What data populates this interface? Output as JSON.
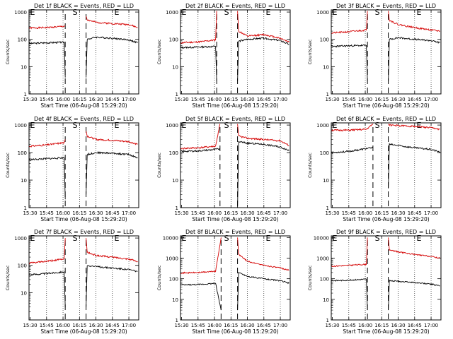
{
  "figure": {
    "colors": {
      "events": "#000000",
      "lld": "#d40000",
      "markers": "#000000"
    }
  },
  "chart_data": [
    {
      "type": "line",
      "title": "Det 1f BLACK = Events, RED = LLD",
      "ylabel": "Counts/sec",
      "xlabel": "Start Time (06-Aug-08 15:29:20)",
      "x_tick_labels": [
        "15:30",
        "15:45",
        "16:00",
        "16:15",
        "16:30",
        "16:45",
        "17:00"
      ],
      "y_tick_labels": [
        "1",
        "10",
        "100",
        "1000"
      ],
      "xlim": [
        "15:29",
        "17:09"
      ],
      "ylim": [
        1,
        1200
      ],
      "y_scale": "log",
      "grid": "vertical dotted",
      "markers": [
        {
          "label": "S",
          "time": "16:11"
        },
        {
          "label": "E",
          "time": "16:49"
        }
      ],
      "gap": [
        "16:02",
        "16:21"
      ],
      "series": [
        {
          "color": "red",
          "x": [
            "15:29",
            "15:45",
            "16:01",
            "16:02"
          ],
          "y": [
            260,
            270,
            300,
            320
          ]
        },
        {
          "color": "red",
          "x": [
            "16:21",
            "16:22",
            "16:30",
            "16:45",
            "17:00",
            "17:08"
          ],
          "y": [
            700,
            520,
            420,
            380,
            350,
            270
          ]
        },
        {
          "color": "black",
          "x": [
            "15:29",
            "15:45",
            "16:01",
            "16:02"
          ],
          "y": [
            70,
            75,
            78,
            4
          ]
        },
        {
          "color": "black",
          "x": [
            "16:21",
            "16:22",
            "16:30",
            "16:45",
            "17:00",
            "17:08"
          ],
          "y": [
            4,
            100,
            120,
            110,
            95,
            75
          ]
        }
      ]
    },
    {
      "type": "line",
      "title": "Det 2f BLACK = Events, RED = LLD",
      "ylabel": "Counts/sec",
      "xlabel": "Start Time (06-Aug-08 15:29:20)",
      "x_tick_labels": [
        "15:30",
        "15:45",
        "16:00",
        "16:15",
        "16:30",
        "16:45",
        "17:00"
      ],
      "y_tick_labels": [
        "1",
        "10",
        "100",
        "1000"
      ],
      "xlim": [
        "15:29",
        "17:09"
      ],
      "ylim": [
        1,
        1200
      ],
      "y_scale": "log",
      "grid": "vertical dotted",
      "markers": [
        {
          "label": "S",
          "time": "16:11"
        },
        {
          "label": "E",
          "time": "16:49"
        }
      ],
      "gap": [
        "16:02",
        "16:21"
      ],
      "series": [
        {
          "color": "red",
          "x": [
            "15:29",
            "15:45",
            "16:01",
            "16:02"
          ],
          "y": [
            75,
            80,
            95,
            1100
          ]
        },
        {
          "color": "red",
          "x": [
            "16:21",
            "16:22",
            "16:30",
            "16:45",
            "17:00",
            "17:08"
          ],
          "y": [
            1100,
            200,
            130,
            150,
            110,
            80
          ]
        },
        {
          "color": "black",
          "x": [
            "15:29",
            "15:45",
            "16:01",
            "16:02"
          ],
          "y": [
            50,
            52,
            55,
            3
          ]
        },
        {
          "color": "black",
          "x": [
            "16:21",
            "16:22",
            "16:30",
            "16:45",
            "17:00",
            "17:08"
          ],
          "y": [
            3,
            85,
            100,
            110,
            90,
            65
          ]
        }
      ]
    },
    {
      "type": "line",
      "title": "Det 3f BLACK = Events, RED = LLD",
      "ylabel": "Counts/sec",
      "xlabel": "Start Time (06-Aug-08 15:29:20)",
      "x_tick_labels": [
        "15:30",
        "15:45",
        "16:00",
        "16:15",
        "16:30",
        "16:45",
        "17:00"
      ],
      "y_tick_labels": [
        "1",
        "10",
        "100",
        "1000"
      ],
      "xlim": [
        "15:29",
        "17:09"
      ],
      "ylim": [
        1,
        1200
      ],
      "y_scale": "log",
      "grid": "vertical dotted",
      "markers": [
        {
          "label": "S",
          "time": "16:11"
        },
        {
          "label": "E",
          "time": "16:49"
        }
      ],
      "gap": [
        "16:02",
        "16:21"
      ],
      "series": [
        {
          "color": "red",
          "x": [
            "15:29",
            "15:45",
            "16:01",
            "16:02"
          ],
          "y": [
            170,
            190,
            220,
            1100
          ]
        },
        {
          "color": "red",
          "x": [
            "16:21",
            "16:22",
            "16:30",
            "16:45",
            "17:00",
            "17:08"
          ],
          "y": [
            1100,
            500,
            350,
            270,
            220,
            200
          ]
        },
        {
          "color": "black",
          "x": [
            "15:29",
            "15:45",
            "16:01",
            "16:02"
          ],
          "y": [
            55,
            58,
            60,
            3
          ]
        },
        {
          "color": "black",
          "x": [
            "16:21",
            "16:22",
            "16:30",
            "16:45",
            "17:00",
            "17:08"
          ],
          "y": [
            3,
            100,
            115,
            100,
            90,
            75
          ]
        }
      ]
    },
    {
      "type": "line",
      "title": "Det 4f BLACK = Events, RED = LLD",
      "ylabel": "Counts/sec",
      "xlabel": "Start Time (06-Aug-08 15:29:20)",
      "x_tick_labels": [
        "15:30",
        "15:45",
        "16:00",
        "16:15",
        "16:30",
        "16:45",
        "17:00"
      ],
      "y_tick_labels": [
        "1",
        "10",
        "100",
        "1000"
      ],
      "xlim": [
        "15:29",
        "17:09"
      ],
      "ylim": [
        1,
        1200
      ],
      "y_scale": "log",
      "grid": "vertical dotted",
      "markers": [
        {
          "label": "S",
          "time": "16:11"
        },
        {
          "label": "E",
          "time": "16:49"
        }
      ],
      "gap": [
        "16:02",
        "16:21"
      ],
      "series": [
        {
          "color": "red",
          "x": [
            "15:29",
            "15:45",
            "16:01",
            "16:02"
          ],
          "y": [
            170,
            190,
            230,
            300
          ]
        },
        {
          "color": "red",
          "x": [
            "16:21",
            "16:22",
            "16:30",
            "16:45",
            "17:00",
            "17:08"
          ],
          "y": [
            600,
            400,
            300,
            280,
            250,
            200
          ]
        },
        {
          "color": "black",
          "x": [
            "15:29",
            "15:45",
            "16:01",
            "16:02"
          ],
          "y": [
            55,
            60,
            65,
            2
          ]
        },
        {
          "color": "black",
          "x": [
            "16:21",
            "16:22",
            "16:30",
            "16:45",
            "17:00",
            "17:08"
          ],
          "y": [
            3,
            85,
            100,
            95,
            85,
            65
          ]
        }
      ]
    },
    {
      "type": "line",
      "title": "Det 5f BLACK = Events, RED = LLD",
      "ylabel": "Counts/sec",
      "xlabel": "Start Time (06-Aug-08 15:29:20)",
      "x_tick_labels": [
        "15:30",
        "15:45",
        "16:00",
        "16:15",
        "16:30",
        "16:45",
        "17:00"
      ],
      "y_tick_labels": [
        "1",
        "10",
        "100",
        "1000"
      ],
      "xlim": [
        "15:29",
        "17:09"
      ],
      "ylim": [
        1,
        1200
      ],
      "y_scale": "log",
      "grid": "vertical dotted",
      "markers": [
        {
          "label": "S",
          "time": "16:11"
        },
        {
          "label": "E",
          "time": "16:49"
        }
      ],
      "gap": [
        "16:05",
        "16:21"
      ],
      "series": [
        {
          "color": "red",
          "x": [
            "15:29",
            "15:45",
            "16:01",
            "16:05"
          ],
          "y": [
            140,
            150,
            170,
            1100
          ]
        },
        {
          "color": "red",
          "x": [
            "16:21",
            "16:22",
            "16:30",
            "16:45",
            "17:00",
            "17:08"
          ],
          "y": [
            1100,
            400,
            330,
            300,
            270,
            180
          ]
        },
        {
          "color": "black",
          "x": [
            "15:29",
            "15:45",
            "16:01",
            "16:05"
          ],
          "y": [
            110,
            115,
            130,
            140
          ]
        },
        {
          "color": "black",
          "x": [
            "16:21",
            "16:22",
            "16:30",
            "16:45",
            "17:00",
            "17:08"
          ],
          "y": [
            1,
            250,
            220,
            200,
            160,
            120
          ]
        }
      ]
    },
    {
      "type": "line",
      "title": "Det 6f BLACK = Events, RED = LLD",
      "ylabel": "Counts/sec",
      "xlabel": "Start Time (06-Aug-08 15:29:20)",
      "x_tick_labels": [
        "15:30",
        "15:45",
        "16:00",
        "16:15",
        "16:30",
        "16:45",
        "17:00"
      ],
      "y_tick_labels": [
        "1",
        "10",
        "100",
        "1000"
      ],
      "xlim": [
        "15:29",
        "17:09"
      ],
      "ylim": [
        1,
        1200
      ],
      "y_scale": "log",
      "grid": "vertical dotted",
      "markers": [
        {
          "label": "S",
          "time": "16:11"
        },
        {
          "label": "E",
          "time": "16:49"
        }
      ],
      "gap": [
        "16:07",
        "16:21"
      ],
      "series": [
        {
          "color": "red",
          "x": [
            "15:29",
            "15:45",
            "16:01",
            "16:07"
          ],
          "y": [
            650,
            650,
            700,
            1100
          ]
        },
        {
          "color": "red",
          "x": [
            "16:21",
            "16:22",
            "16:30",
            "16:45",
            "17:00",
            "17:08"
          ],
          "y": [
            1100,
            1000,
            950,
            900,
            800,
            700
          ]
        },
        {
          "color": "black",
          "x": [
            "15:29",
            "15:45",
            "16:01",
            "16:07"
          ],
          "y": [
            100,
            110,
            140,
            150
          ]
        },
        {
          "color": "black",
          "x": [
            "16:21",
            "16:22",
            "16:30",
            "16:45",
            "17:00",
            "17:08"
          ],
          "y": [
            5,
            200,
            180,
            150,
            130,
            105
          ]
        }
      ]
    },
    {
      "type": "line",
      "title": "Det 7f BLACK = Events, RED = LLD",
      "ylabel": "Counts/sec",
      "xlabel": "Start Time (06-Aug-08 15:29:20)",
      "x_tick_labels": [
        "15:30",
        "15:45",
        "16:00",
        "16:15",
        "16:30",
        "16:45",
        "17:00"
      ],
      "y_tick_labels": [
        "10",
        "100",
        "1000"
      ],
      "xlim": [
        "15:29",
        "17:09"
      ],
      "ylim": [
        1,
        1200
      ],
      "y_scale": "log",
      "grid": "vertical dotted",
      "markers": [
        {
          "label": "S",
          "time": "16:11"
        },
        {
          "label": "E",
          "time": "16:49"
        }
      ],
      "gap": [
        "16:02",
        "16:21"
      ],
      "series": [
        {
          "color": "red",
          "x": [
            "15:29",
            "15:45",
            "16:01",
            "16:02"
          ],
          "y": [
            120,
            140,
            170,
            1000
          ]
        },
        {
          "color": "red",
          "x": [
            "16:21",
            "16:22",
            "16:30",
            "16:45",
            "17:00",
            "17:08"
          ],
          "y": [
            1000,
            300,
            230,
            200,
            170,
            140
          ]
        },
        {
          "color": "black",
          "x": [
            "15:29",
            "15:45",
            "16:01",
            "16:02"
          ],
          "y": [
            45,
            50,
            58,
            3
          ]
        },
        {
          "color": "black",
          "x": [
            "16:21",
            "16:22",
            "16:30",
            "16:45",
            "17:00",
            "17:08"
          ],
          "y": [
            3,
            100,
            90,
            80,
            70,
            60
          ]
        }
      ]
    },
    {
      "type": "line",
      "title": "Det 8f BLACK = Events, RED = LLD",
      "ylabel": "Counts/sec",
      "xlabel": "Start Time (06-Aug-08 15:29:20)",
      "x_tick_labels": [
        "15:30",
        "15:45",
        "16:00",
        "16:15",
        "16:30",
        "16:45",
        "17:00"
      ],
      "y_tick_labels": [
        "1",
        "10",
        "100",
        "1000",
        "10000"
      ],
      "xlim": [
        "15:29",
        "17:09"
      ],
      "ylim": [
        1,
        12000
      ],
      "y_scale": "log",
      "grid": "vertical dotted",
      "markers": [
        {
          "label": "S",
          "time": "16:11"
        },
        {
          "label": "E",
          "time": "16:49"
        }
      ],
      "gap": [
        "16:06",
        "16:21"
      ],
      "series": [
        {
          "color": "red",
          "x": [
            "15:29",
            "15:45",
            "16:01",
            "16:06"
          ],
          "y": [
            190,
            200,
            230,
            10000
          ]
        },
        {
          "color": "red",
          "x": [
            "16:21",
            "16:22",
            "16:30",
            "16:45",
            "17:00",
            "17:08"
          ],
          "y": [
            10000,
            1500,
            700,
            450,
            330,
            260
          ]
        },
        {
          "color": "black",
          "x": [
            "15:29",
            "15:45",
            "16:01",
            "16:06"
          ],
          "y": [
            50,
            52,
            60,
            3
          ]
        },
        {
          "color": "black",
          "x": [
            "16:21",
            "16:22",
            "16:30",
            "16:45",
            "17:00",
            "17:08"
          ],
          "y": [
            3,
            200,
            130,
            100,
            80,
            60
          ]
        }
      ]
    },
    {
      "type": "line",
      "title": "Det 9f BLACK = Events, RED = LLD",
      "ylabel": "Counts/sec",
      "xlabel": "Start Time (06-Aug-08 15:29:20)",
      "x_tick_labels": [
        "15:30",
        "15:45",
        "16:00",
        "16:15",
        "16:30",
        "16:45",
        "17:00"
      ],
      "y_tick_labels": [
        "1",
        "10",
        "100",
        "1000",
        "10000"
      ],
      "xlim": [
        "15:29",
        "17:09"
      ],
      "ylim": [
        1,
        12000
      ],
      "y_scale": "log",
      "grid": "vertical dotted",
      "markers": [
        {
          "label": "S",
          "time": "16:11"
        },
        {
          "label": "E",
          "time": "16:49"
        }
      ],
      "gap": [
        "16:02",
        "16:21"
      ],
      "series": [
        {
          "color": "red",
          "x": [
            "15:29",
            "15:45",
            "16:01",
            "16:02"
          ],
          "y": [
            400,
            450,
            500,
            10000
          ]
        },
        {
          "color": "red",
          "x": [
            "16:21",
            "16:22",
            "16:30",
            "16:45",
            "17:00",
            "17:08"
          ],
          "y": [
            10000,
            2500,
            2000,
            1500,
            1200,
            1000
          ]
        },
        {
          "color": "black",
          "x": [
            "15:29",
            "15:45",
            "16:01",
            "16:02"
          ],
          "y": [
            80,
            85,
            95,
            3
          ]
        },
        {
          "color": "black",
          "x": [
            "16:21",
            "16:22",
            "16:30",
            "16:45",
            "17:00",
            "17:08"
          ],
          "y": [
            3,
            80,
            75,
            65,
            55,
            45
          ]
        }
      ]
    }
  ]
}
